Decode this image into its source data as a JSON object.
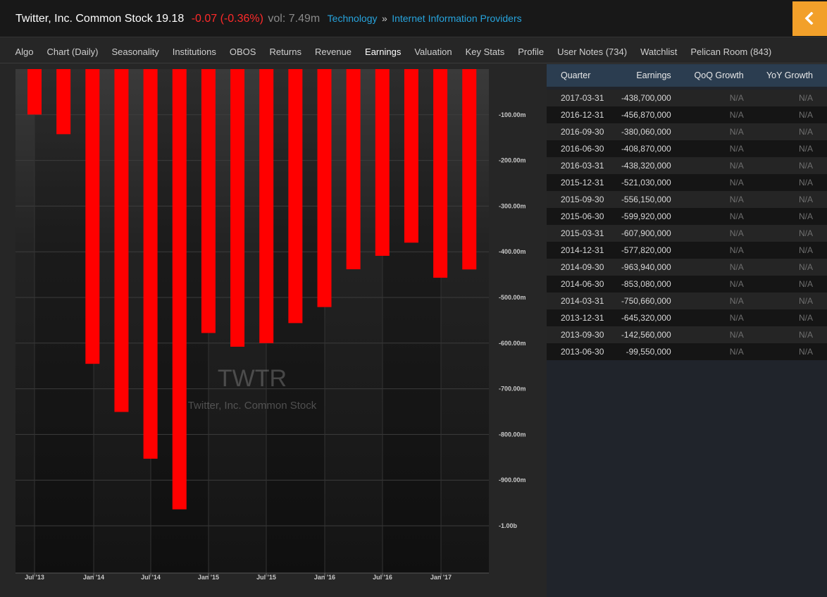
{
  "header": {
    "company": "Twitter, Inc. Common Stock",
    "price": "19.18",
    "change": "-0.07 (-0.36%)",
    "volume": "vol: 7.49m",
    "sector": "Technology",
    "separator": "»",
    "industry": "Internet Information Providers",
    "back_icon": "chevron-left-icon",
    "accent_color": "#f2a02a"
  },
  "nav": {
    "items": [
      "Algo",
      "Chart (Daily)",
      "Seasonality",
      "Institutions",
      "OBOS",
      "Returns",
      "Revenue",
      "Earnings",
      "Valuation",
      "Key Stats",
      "Profile",
      "User Notes (734)",
      "Watchlist",
      "Pelican Room (843)"
    ],
    "active": "Earnings"
  },
  "chart_data": {
    "type": "bar",
    "watermark_symbol": "TWTR",
    "watermark_name": "Twitter, Inc. Common Stock",
    "categories": [
      "2013-06-30",
      "2013-09-30",
      "2013-12-31",
      "2014-03-31",
      "2014-06-30",
      "2014-09-30",
      "2014-12-31",
      "2015-03-31",
      "2015-06-30",
      "2015-09-30",
      "2015-12-31",
      "2016-03-31",
      "2016-06-30",
      "2016-09-30",
      "2016-12-31",
      "2017-03-31"
    ],
    "values": [
      -99550000,
      -142560000,
      -645320000,
      -750660000,
      -853080000,
      -963940000,
      -577820000,
      -607900000,
      -599920000,
      -556150000,
      -521030000,
      -438320000,
      -408870000,
      -380060000,
      -456870000,
      -438700000
    ],
    "bar_color": "#ff0000",
    "ylim": [
      -1100000000,
      0
    ],
    "y_ticks": [
      {
        "value": -100000000,
        "label": "-100.00m"
      },
      {
        "value": -200000000,
        "label": "-200.00m"
      },
      {
        "value": -300000000,
        "label": "-300.00m"
      },
      {
        "value": -400000000,
        "label": "-400.00m"
      },
      {
        "value": -500000000,
        "label": "-500.00m"
      },
      {
        "value": -600000000,
        "label": "-600.00m"
      },
      {
        "value": -700000000,
        "label": "-700.00m"
      },
      {
        "value": -800000000,
        "label": "-800.00m"
      },
      {
        "value": -900000000,
        "label": "-900.00m"
      },
      {
        "value": -1000000000,
        "label": "-1.00b"
      }
    ],
    "x_ticks": [
      "Jul '13",
      "Jan '14",
      "Jul '14",
      "Jan '15",
      "Jul '15",
      "Jan '16",
      "Jul '16",
      "Jan '17"
    ],
    "grid": true
  },
  "table": {
    "headers": [
      "Quarter",
      "Earnings",
      "QoQ Growth",
      "YoY Growth"
    ],
    "rows": [
      [
        "2017-03-31",
        "-438,700,000",
        "N/A",
        "N/A"
      ],
      [
        "2016-12-31",
        "-456,870,000",
        "N/A",
        "N/A"
      ],
      [
        "2016-09-30",
        "-380,060,000",
        "N/A",
        "N/A"
      ],
      [
        "2016-06-30",
        "-408,870,000",
        "N/A",
        "N/A"
      ],
      [
        "2016-03-31",
        "-438,320,000",
        "N/A",
        "N/A"
      ],
      [
        "2015-12-31",
        "-521,030,000",
        "N/A",
        "N/A"
      ],
      [
        "2015-09-30",
        "-556,150,000",
        "N/A",
        "N/A"
      ],
      [
        "2015-06-30",
        "-599,920,000",
        "N/A",
        "N/A"
      ],
      [
        "2015-03-31",
        "-607,900,000",
        "N/A",
        "N/A"
      ],
      [
        "2014-12-31",
        "-577,820,000",
        "N/A",
        "N/A"
      ],
      [
        "2014-09-30",
        "-963,940,000",
        "N/A",
        "N/A"
      ],
      [
        "2014-06-30",
        "-853,080,000",
        "N/A",
        "N/A"
      ],
      [
        "2014-03-31",
        "-750,660,000",
        "N/A",
        "N/A"
      ],
      [
        "2013-12-31",
        "-645,320,000",
        "N/A",
        "N/A"
      ],
      [
        "2013-09-30",
        "-142,560,000",
        "N/A",
        "N/A"
      ],
      [
        "2013-06-30",
        "-99,550,000",
        "N/A",
        "N/A"
      ]
    ]
  }
}
